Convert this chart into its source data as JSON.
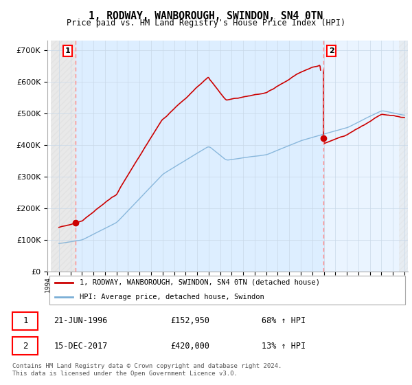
{
  "title": "1, RODWAY, WANBOROUGH, SWINDON, SN4 0TN",
  "subtitle": "Price paid vs. HM Land Registry's House Price Index (HPI)",
  "yticks": [
    0,
    100000,
    200000,
    300000,
    400000,
    500000,
    600000,
    700000
  ],
  "ytick_labels": [
    "£0",
    "£100K",
    "£200K",
    "£300K",
    "£400K",
    "£500K",
    "£600K",
    "£700K"
  ],
  "xlim_start": 1994.3,
  "xlim_end": 2025.3,
  "ylim_min": 0,
  "ylim_max": 730000,
  "transaction1_x": 1996.47,
  "transaction1_y": 152950,
  "transaction2_x": 2017.96,
  "transaction2_y": 420000,
  "legend_line1": "1, RODWAY, WANBOROUGH, SWINDON, SN4 0TN (detached house)",
  "legend_line2": "HPI: Average price, detached house, Swindon",
  "annotation1_label": "1",
  "annotation2_label": "2",
  "table_row1": [
    "1",
    "21-JUN-1996",
    "£152,950",
    "68% ↑ HPI"
  ],
  "table_row2": [
    "2",
    "15-DEC-2017",
    "£420,000",
    "13% ↑ HPI"
  ],
  "footer": "Contains HM Land Registry data © Crown copyright and database right 2024.\nThis data is licensed under the Open Government Licence v3.0.",
  "red_color": "#cc0000",
  "blue_color": "#7aaed6",
  "bg_blue": "#ddeeff"
}
